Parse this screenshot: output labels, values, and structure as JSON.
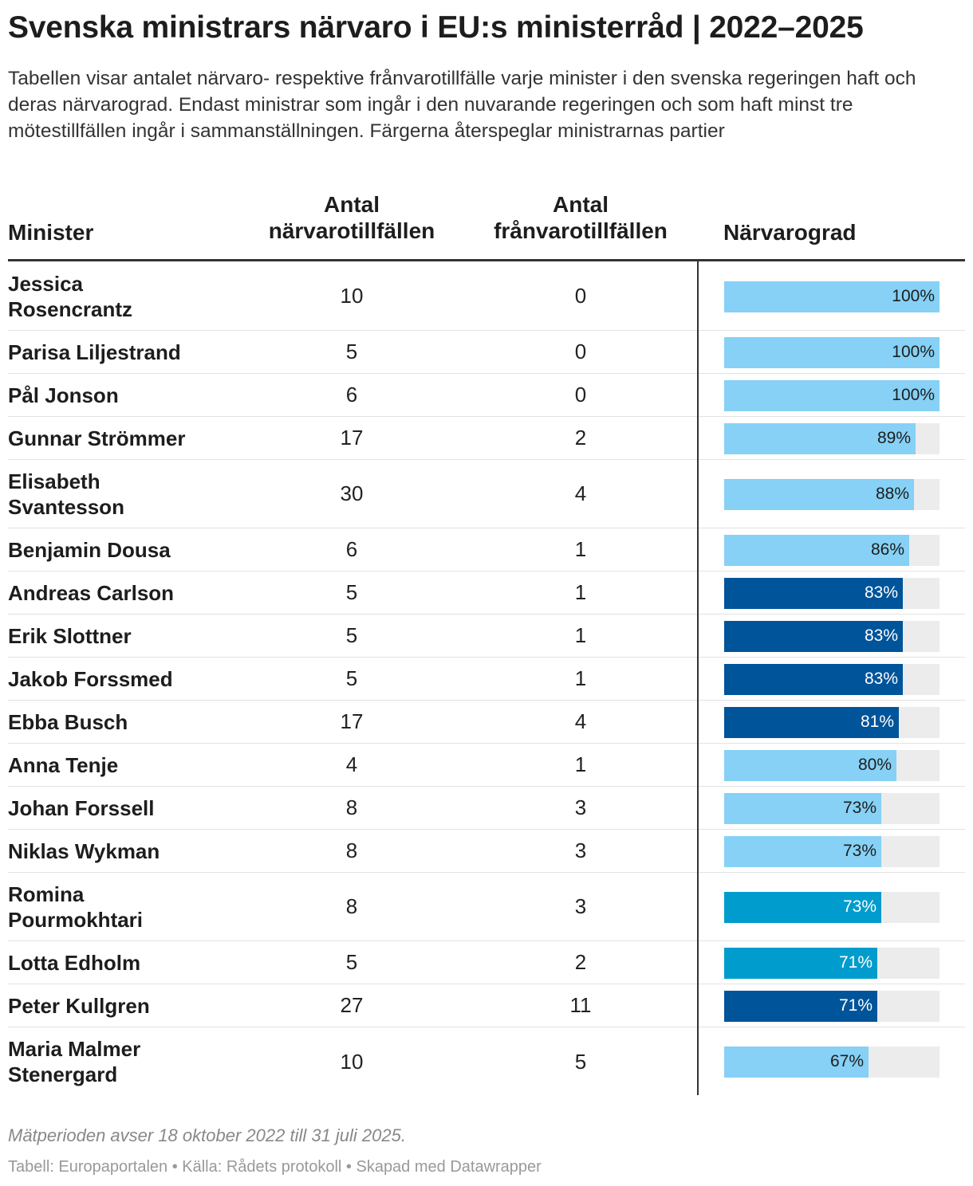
{
  "title": "Svenska ministrars närvaro i EU:s ministerråd | 2022–2025",
  "description": "Tabellen visar antalet närvaro- respektive frånvarotillfälle varje minister i den svenska regeringen haft och deras närvarograd. Endast ministrar som ingår i den nuvarande regeringen och som haft minst tre mötestillfällen ingår i sammanställningen. Färgerna återspeglar ministrarnas partier",
  "colors": {
    "light_blue": "#86d1f5",
    "dark_blue": "#00549a",
    "mid_blue": "#009ccd",
    "track": "#ececec"
  },
  "chart_data": {
    "type": "table",
    "columns": [
      "Minister",
      "Antal närvarotillfällen",
      "Antal frånvarotillfällen",
      "Närvarograd"
    ],
    "header_lines": [
      [
        "Minister"
      ],
      [
        "Antal",
        "närvarotillfällen"
      ],
      [
        "Antal",
        "frånvarotillfällen"
      ],
      [
        "Närvarograd"
      ]
    ],
    "rows": [
      {
        "name": "Jessica Rosencrantz",
        "name_lines": [
          "Jessica",
          "Rosencrantz"
        ],
        "present": "10",
        "absent": "0",
        "rate": 100,
        "rate_label": "100%",
        "color": "light_blue"
      },
      {
        "name": "Parisa Liljestrand",
        "name_lines": [
          "Parisa Liljestrand"
        ],
        "present": "5",
        "absent": "0",
        "rate": 100,
        "rate_label": "100%",
        "color": "light_blue"
      },
      {
        "name": "Pål Jonson",
        "name_lines": [
          "Pål Jonson"
        ],
        "present": "6",
        "absent": "0",
        "rate": 100,
        "rate_label": "100%",
        "color": "light_blue"
      },
      {
        "name": "Gunnar Strömmer",
        "name_lines": [
          "Gunnar Strömmer"
        ],
        "present": "17",
        "absent": "2",
        "rate": 89,
        "rate_label": "89%",
        "color": "light_blue"
      },
      {
        "name": "Elisabeth Svantesson",
        "name_lines": [
          "Elisabeth",
          "Svantesson"
        ],
        "present": "30",
        "absent": "4",
        "rate": 88,
        "rate_label": "88%",
        "color": "light_blue"
      },
      {
        "name": "Benjamin Dousa",
        "name_lines": [
          "Benjamin Dousa"
        ],
        "present": "6",
        "absent": "1",
        "rate": 86,
        "rate_label": "86%",
        "color": "light_blue"
      },
      {
        "name": "Andreas Carlson",
        "name_lines": [
          "Andreas Carlson"
        ],
        "present": "5",
        "absent": "1",
        "rate": 83,
        "rate_label": "83%",
        "color": "dark_blue"
      },
      {
        "name": "Erik Slottner",
        "name_lines": [
          "Erik Slottner"
        ],
        "present": "5",
        "absent": "1",
        "rate": 83,
        "rate_label": "83%",
        "color": "dark_blue"
      },
      {
        "name": "Jakob Forssmed",
        "name_lines": [
          "Jakob Forssmed"
        ],
        "present": "5",
        "absent": "1",
        "rate": 83,
        "rate_label": "83%",
        "color": "dark_blue"
      },
      {
        "name": "Ebba Busch",
        "name_lines": [
          "Ebba Busch"
        ],
        "present": "17",
        "absent": "4",
        "rate": 81,
        "rate_label": "81%",
        "color": "dark_blue"
      },
      {
        "name": "Anna Tenje",
        "name_lines": [
          "Anna Tenje"
        ],
        "present": "4",
        "absent": "1",
        "rate": 80,
        "rate_label": "80%",
        "color": "light_blue"
      },
      {
        "name": "Johan Forssell",
        "name_lines": [
          "Johan Forssell"
        ],
        "present": "8",
        "absent": "3",
        "rate": 73,
        "rate_label": "73%",
        "color": "light_blue"
      },
      {
        "name": "Niklas Wykman",
        "name_lines": [
          "Niklas Wykman"
        ],
        "present": "8",
        "absent": "3",
        "rate": 73,
        "rate_label": "73%",
        "color": "light_blue"
      },
      {
        "name": "Romina Pourmokhtari",
        "name_lines": [
          "Romina",
          "Pourmokhtari"
        ],
        "present": "8",
        "absent": "3",
        "rate": 73,
        "rate_label": "73%",
        "color": "mid_blue"
      },
      {
        "name": "Lotta Edholm",
        "name_lines": [
          "Lotta Edholm"
        ],
        "present": "5",
        "absent": "2",
        "rate": 71,
        "rate_label": "71%",
        "color": "mid_blue"
      },
      {
        "name": "Peter Kullgren",
        "name_lines": [
          "Peter Kullgren"
        ],
        "present": "27",
        "absent": "11",
        "rate": 71,
        "rate_label": "71%",
        "color": "dark_blue"
      },
      {
        "name": "Maria Malmer Stenergard",
        "name_lines": [
          "Maria Malmer",
          "Stenergard"
        ],
        "present": "10",
        "absent": "5",
        "rate": 67,
        "rate_label": "67%",
        "color": "light_blue"
      }
    ]
  },
  "footer": {
    "note": "Mätperioden avser 18 oktober 2022 till 31 juli 2025.",
    "source": "Tabell: Europaportalen • Källa: Rådets protokoll • Skapad med Datawrapper"
  }
}
